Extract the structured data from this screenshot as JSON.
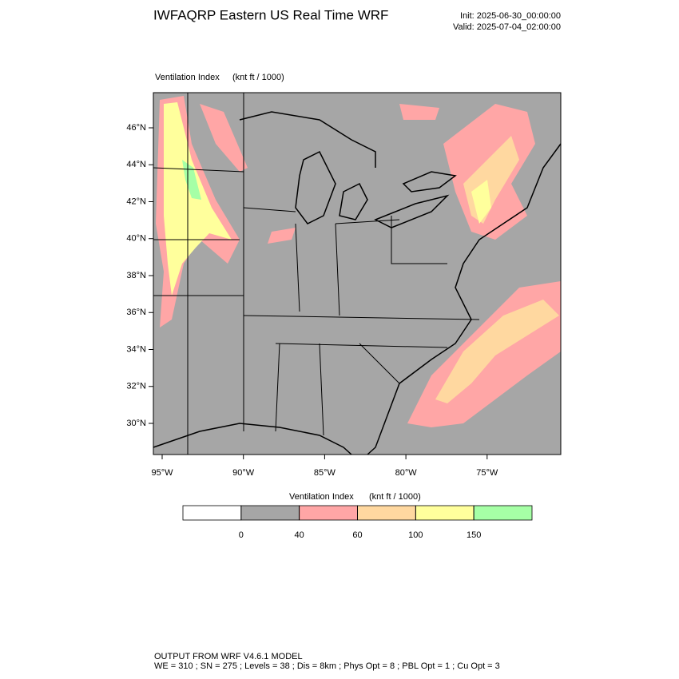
{
  "header": {
    "title": "IWFAQRP Eastern US Real Time WRF",
    "init": "Init: 2025-06-30_00:00:00",
    "valid": "Valid: 2025-07-04_02:00:00"
  },
  "map": {
    "label": "Ventilation Index",
    "units": "(knt ft / 1000)",
    "lat_labels": [
      "46°N",
      "44°N",
      "42°N",
      "40°N",
      "38°N",
      "36°N",
      "34°N",
      "32°N",
      "30°N"
    ],
    "lon_labels": [
      "95°W",
      "90°W",
      "85°W",
      "80°W",
      "75°W"
    ]
  },
  "colorbar": {
    "label": "Ventilation Index",
    "units": "(knt ft / 1000)",
    "levels": [
      0,
      40,
      60,
      100,
      150
    ],
    "colors": [
      "#ffffff",
      "#a6a6a6",
      "#ffa6a6",
      "#ffd8a0",
      "#ffff9c",
      "#a6ffa6"
    ]
  },
  "footer": {
    "line1": "OUTPUT FROM WRF V4.6.1 MODEL",
    "line2": "WE = 310 ; SN = 275 ; Levels = 38 ; Dis = 8km ; Phys Opt = 8 ; PBL Opt = 1 ; Cu Opt = 3"
  }
}
